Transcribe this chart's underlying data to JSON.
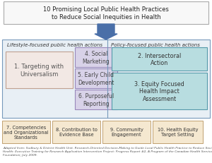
{
  "title_line1": "10 Promising Local Public Health Practices",
  "title_line2": "to Reduce Social Inequities in Health",
  "title_box_bg": "#f8f8f8",
  "title_border_color": "#aaaaaa",
  "left_section_label": "Lifestyle-focused public health actions",
  "right_section_label": "Policy-focused public health actions",
  "section_bg": "#e8eff5",
  "section_border": "#7799bb",
  "divider_color": "#7799bb",
  "box1_text": "1. Targeting with\nUniversalism",
  "box1_bg": "#f2e8e4",
  "box1_border": "#c0a090",
  "box4_text": "4. Social\nMarketing",
  "box4_bg": "#d8d2e8",
  "box4_border": "#9988bb",
  "box5_text": "5. Early Child\nDevelopment",
  "box5_bg": "#d8d2e8",
  "box5_border": "#9988bb",
  "box6_text": "6. Purposeful\nReporting",
  "box6_bg": "#d8d2e8",
  "box6_border": "#9988bb",
  "box2_text": "2. Intersectoral\nAction",
  "box2_bg": "#b8dde0",
  "box2_border": "#5599aa",
  "box3_text": "3. Equity Focused\nHealth Impact\nAssessment",
  "box3_bg": "#b8dde0",
  "box3_border": "#5599aa",
  "box7_text": "7. Competencies\nand Organizational\nStandards",
  "box7_bg": "#f5e8d0",
  "box7_border": "#c0a070",
  "box8_text": "8. Contribution to\nEvidence Base",
  "box8_bg": "#f5e8d0",
  "box8_border": "#c0a070",
  "box9_text": "9. Community\nEngagement",
  "box9_bg": "#f5e8d0",
  "box9_border": "#c0a070",
  "box10_text": "10. Health Equity\nTarget Setting",
  "box10_bg": "#f5e8d0",
  "box10_border": "#c0a070",
  "arrow_color": "#4a6fa8",
  "footnote": "Adapted from: Sudbury & District Health Unit. Research-Oriented Decision-Making to Guide Local Public Health Practice to Reduce Social Inequities in\nHealth: Executive Training for Research Application Intervention Project: Progress Report #2, A Program of the Canadian Health Services Research\nFoundation; July 2009.",
  "bg_color": "#ffffff"
}
